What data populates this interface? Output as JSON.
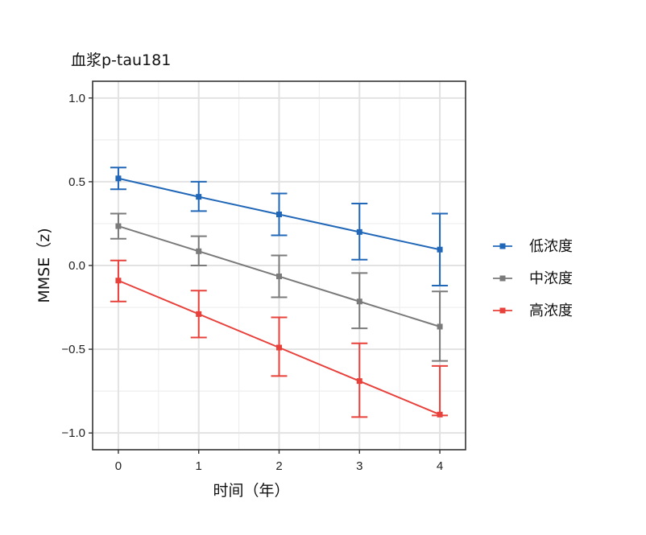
{
  "chart_data": {
    "type": "line",
    "title": "血浆p-tau181",
    "xlabel": "时间（年）",
    "ylabel": "MMSE（z)",
    "x": [
      0,
      1,
      2,
      3,
      4
    ],
    "xlim": [
      -0.32,
      4.32
    ],
    "ylim": [
      -1.1,
      1.1
    ],
    "yticks": [
      1.0,
      0.5,
      0.0,
      -0.5,
      -1.0
    ],
    "ytick_labels": [
      "1.0",
      "0.5",
      "0.0",
      "−0.5",
      "−1.0"
    ],
    "xticks": [
      0,
      1,
      2,
      3,
      4
    ],
    "xtick_labels": [
      "0",
      "1",
      "2",
      "3",
      "4"
    ],
    "grid": true,
    "legend_position": "right",
    "series": [
      {
        "name": "低浓度",
        "color": "#2167b8",
        "values": [
          0.52,
          0.41,
          0.305,
          0.2,
          0.095
        ],
        "err_low": [
          0.455,
          0.325,
          0.18,
          0.035,
          -0.12
        ],
        "err_high": [
          0.585,
          0.5,
          0.43,
          0.37,
          0.31
        ]
      },
      {
        "name": "中浓度",
        "color": "#7a7a7a",
        "values": [
          0.235,
          0.085,
          -0.065,
          -0.215,
          -0.365
        ],
        "err_low": [
          0.16,
          0.0,
          -0.19,
          -0.375,
          -0.57
        ],
        "err_high": [
          0.31,
          0.175,
          0.06,
          -0.045,
          -0.155
        ]
      },
      {
        "name": "高浓度",
        "color": "#e8403a",
        "values": [
          -0.09,
          -0.29,
          -0.49,
          -0.69,
          -0.89
        ],
        "err_low": [
          -0.215,
          -0.43,
          -0.66,
          -0.905,
          -0.895
        ],
        "err_high": [
          0.03,
          -0.15,
          -0.31,
          -0.465,
          -0.6
        ]
      }
    ]
  }
}
